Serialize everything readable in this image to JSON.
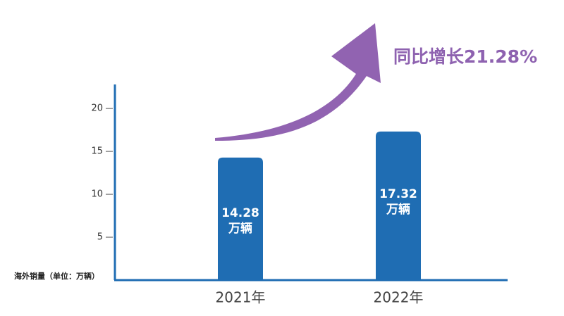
{
  "chart_data": {
    "type": "bar",
    "categories": [
      "2021年",
      "2022年"
    ],
    "values": [
      14.28,
      17.32
    ],
    "value_labels": [
      "14.28\n万辆",
      "17.32\n万辆"
    ],
    "color": "#1f6db3",
    "ylim": [
      0,
      22.8
    ],
    "yticks": [
      5,
      10,
      15,
      20
    ],
    "ylabel": "海外销量（单位：万辆）",
    "annotation": "同比增长21.28%"
  }
}
